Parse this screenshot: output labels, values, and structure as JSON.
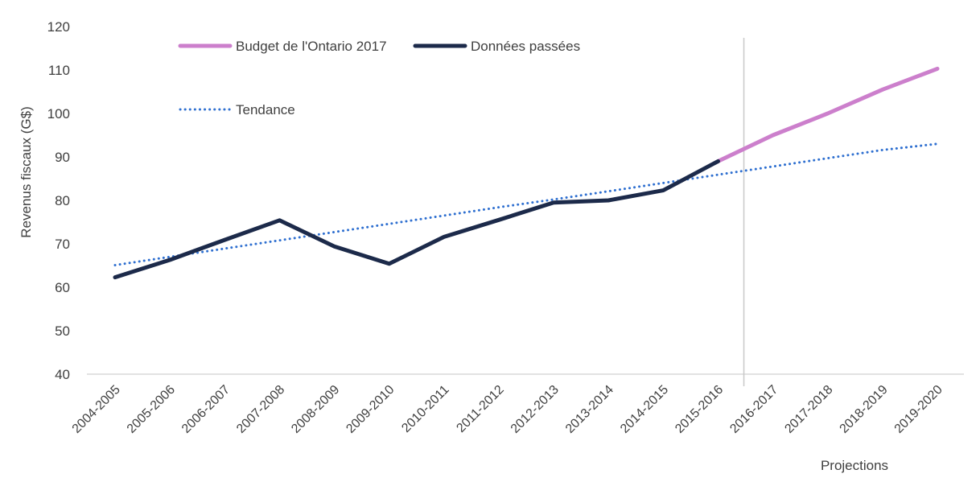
{
  "chart_data": {
    "type": "line",
    "ylabel": "Revenus fiscaux (G$)",
    "ylim": [
      40,
      120
    ],
    "ytick_step": 10,
    "projection_label": "Projections",
    "categories": [
      "2004-2005",
      "2005-2006",
      "2006-2007",
      "2007-2008",
      "2008-2009",
      "2009-2010",
      "2010-2011",
      "2011-2012",
      "2012-2013",
      "2013-2014",
      "2014-2015",
      "2015-2016",
      "2016-2017",
      "2017-2018",
      "2018-2019",
      "2019-2020"
    ],
    "series": [
      {
        "name": "Données passées",
        "color": "#1c2a4a",
        "style": "solid",
        "values": [
          62.3,
          66.3,
          70.9,
          75.4,
          69.4,
          65.4,
          71.6,
          75.5,
          79.5,
          80.0,
          82.3,
          89.0,
          null,
          null,
          null,
          null
        ]
      },
      {
        "name": "Budget de l'Ontario 2017",
        "color": "#cc7fcc",
        "style": "solid",
        "values": [
          null,
          null,
          null,
          null,
          null,
          null,
          null,
          null,
          null,
          null,
          null,
          89.0,
          95.0,
          100.0,
          105.5,
          110.3
        ]
      },
      {
        "name": "Tendance",
        "color": "#2e6fd0",
        "style": "dotted",
        "values": [
          65.1,
          67.0,
          68.9,
          70.8,
          72.7,
          74.6,
          76.5,
          78.4,
          80.2,
          82.1,
          84.0,
          85.9,
          87.8,
          89.7,
          91.6,
          93.0
        ]
      }
    ],
    "legend": [
      {
        "label": "Budget de l'Ontario 2017",
        "color": "#cc7fcc",
        "style": "solid"
      },
      {
        "label": "Données passées",
        "color": "#1c2a4a",
        "style": "solid"
      },
      {
        "label": "Tendance",
        "color": "#2e6fd0",
        "style": "dotted"
      }
    ],
    "grid": false
  }
}
